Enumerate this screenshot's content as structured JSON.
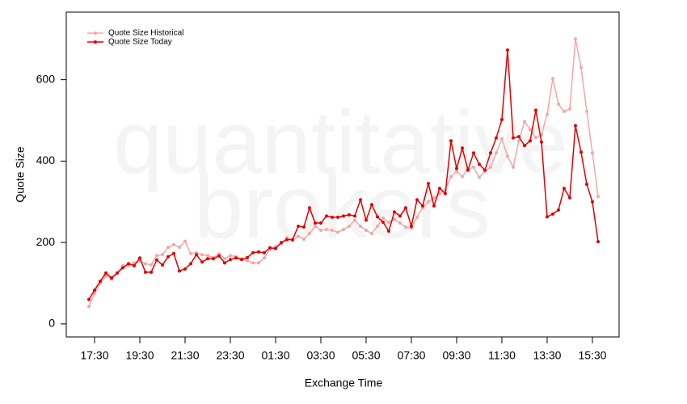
{
  "chart_data": {
    "type": "line",
    "watermark": [
      "quantitative",
      "brokers"
    ],
    "xlabel": "Exchange Time",
    "ylabel": "Quote Size",
    "x": [
      0.25,
      0.5,
      0.75,
      1,
      1.25,
      1.5,
      1.75,
      2,
      2.25,
      2.5,
      2.75,
      3,
      3.25,
      3.5,
      3.75,
      4,
      4.25,
      4.5,
      4.75,
      5,
      5.25,
      5.5,
      5.75,
      6,
      6.25,
      6.5,
      6.75,
      7,
      7.25,
      7.5,
      7.75,
      8,
      8.25,
      8.5,
      8.75,
      9,
      9.25,
      9.5,
      9.75,
      10,
      10.25,
      10.5,
      10.75,
      11,
      11.25,
      11.5,
      11.75,
      12,
      12.25,
      12.5,
      12.75,
      13,
      13.25,
      13.5,
      13.75,
      14,
      14.25,
      14.5,
      14.75,
      15,
      15.25,
      15.5,
      15.75,
      16,
      16.25,
      16.5,
      16.75,
      17,
      17.25,
      17.5,
      17.75,
      18,
      18.25,
      18.5,
      18.75,
      19,
      19.25,
      19.5,
      19.75,
      20,
      20.25,
      20.5,
      20.75,
      21,
      21.25,
      21.5,
      21.75,
      22,
      22.25,
      22.5,
      22.75
    ],
    "series": [
      {
        "name": "Quote Size Historical",
        "color": "#f4a6a6",
        "values": [
          43,
          75,
          100,
          118,
          110,
          125,
          143,
          143,
          150,
          155,
          148,
          145,
          168,
          170,
          188,
          195,
          188,
          203,
          173,
          175,
          170,
          168,
          163,
          172,
          160,
          168,
          165,
          160,
          155,
          150,
          150,
          162,
          183,
          190,
          197,
          212,
          205,
          215,
          208,
          222,
          240,
          230,
          232,
          230,
          225,
          232,
          240,
          255,
          240,
          230,
          222,
          240,
          260,
          250,
          257,
          248,
          238,
          235,
          262,
          285,
          300,
          310,
          320,
          330,
          362,
          375,
          362,
          380,
          385,
          360,
          375,
          385,
          420,
          455,
          412,
          385,
          450,
          497,
          478,
          458,
          465,
          515,
          603,
          540,
          522,
          528,
          700,
          630,
          522,
          420,
          313
        ]
      },
      {
        "name": "Quote Size Today",
        "color": "#e00000",
        "values": [
          60,
          83,
          105,
          125,
          113,
          125,
          138,
          148,
          143,
          162,
          127,
          127,
          157,
          145,
          165,
          173,
          130,
          135,
          148,
          170,
          152,
          160,
          160,
          167,
          150,
          158,
          162,
          158,
          163,
          175,
          177,
          175,
          187,
          185,
          200,
          207,
          207,
          240,
          238,
          285,
          248,
          248,
          265,
          262,
          262,
          265,
          268,
          265,
          305,
          255,
          293,
          263,
          250,
          228,
          275,
          265,
          285,
          240,
          305,
          290,
          345,
          290,
          333,
          320,
          450,
          382,
          432,
          378,
          420,
          392,
          378,
          420,
          457,
          502,
          673,
          457,
          460,
          438,
          450,
          525,
          447,
          263,
          270,
          280,
          333,
          310,
          487,
          422,
          343,
          300,
          202
        ]
      }
    ],
    "xlim": [
      -0.75,
      23.68
    ],
    "xticks": [
      {
        "value": 0.5,
        "label": "17:30"
      },
      {
        "value": 2.5,
        "label": "19:30"
      },
      {
        "value": 4.5,
        "label": "21:30"
      },
      {
        "value": 6.5,
        "label": "23:30"
      },
      {
        "value": 8.5,
        "label": "01:30"
      },
      {
        "value": 10.5,
        "label": "03:30"
      },
      {
        "value": 12.5,
        "label": "05:30"
      },
      {
        "value": 14.5,
        "label": "07:30"
      },
      {
        "value": 16.5,
        "label": "09:30"
      },
      {
        "value": 18.5,
        "label": "11:30"
      },
      {
        "value": 20.5,
        "label": "13:30"
      },
      {
        "value": 22.5,
        "label": "15:30"
      }
    ],
    "ylim": [
      -32,
      766
    ],
    "yticks": [
      0,
      200,
      400,
      600
    ],
    "legend": "upper left"
  }
}
